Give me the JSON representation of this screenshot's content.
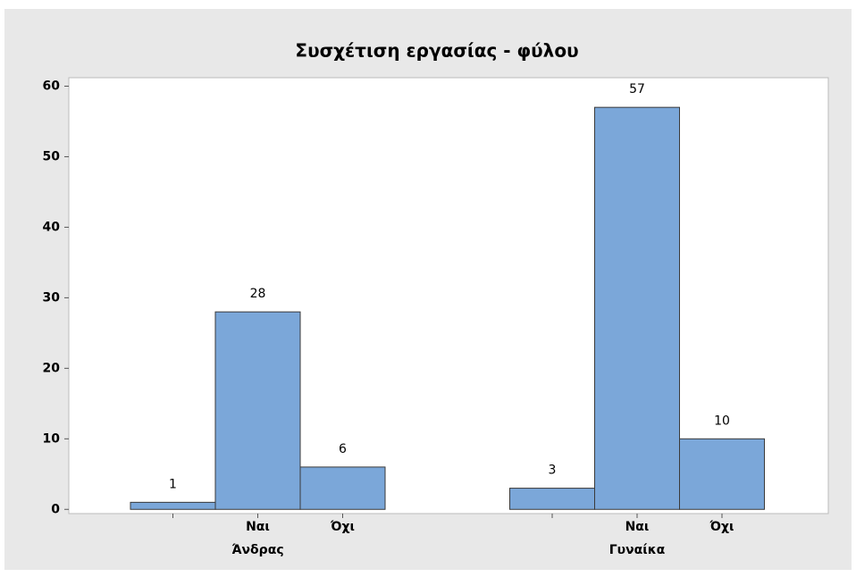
{
  "chart_data": {
    "type": "bar",
    "title": "Συσχέτιση εργασίας - φύλου",
    "categories": [
      null,
      "Ναι",
      "Όχι",
      null,
      "Ναι",
      "Όχι"
    ],
    "groups": [
      "Άνδρας",
      "Γυναίκα"
    ],
    "values": [
      1,
      28,
      6,
      3,
      57,
      10
    ],
    "color": "#7ba7d9",
    "ylim": [
      -0.6,
      61.2
    ],
    "yticks": [
      0,
      10,
      20,
      30,
      40,
      50,
      60
    ],
    "grid": false
  }
}
